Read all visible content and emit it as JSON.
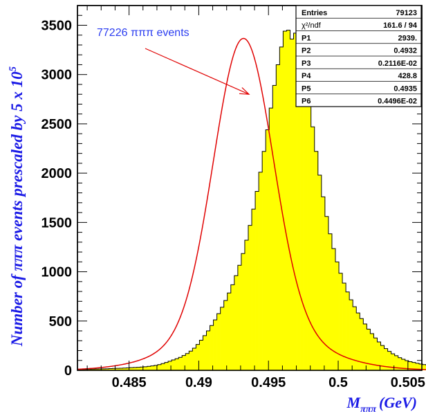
{
  "chart_data": {
    "type": "histogram",
    "x_axis": {
      "label_main": "M",
      "label_sub": "πππ",
      "label_unit": "(GeV)",
      "range": [
        0.4813,
        0.506
      ],
      "ticks": [
        0.485,
        0.49,
        0.495,
        0.5,
        0.505
      ],
      "tick_labels": [
        "0.485",
        "0.49",
        "0.495",
        "0.5",
        "0.505"
      ]
    },
    "y_axis": {
      "label": "Number of πππ events prescaled by 5 x 10",
      "label_exp": "5",
      "range": [
        0,
        3700
      ],
      "ticks": [
        0,
        500,
        1000,
        1500,
        2000,
        2500,
        3000,
        3500
      ],
      "tick_labels": [
        "0",
        "500",
        "1000",
        "1500",
        "2000",
        "2500",
        "3000",
        "3500"
      ]
    },
    "annotation": "77226 πππ events",
    "annotation_point": {
      "x": 0.4936,
      "y": 2800
    },
    "histogram": {
      "fill_color": "#ffff00",
      "line_color": "#000000",
      "bin_edges_start": 0.4813,
      "bin_width": 0.00025,
      "counts": [
        8,
        9,
        10,
        11,
        12,
        13,
        14,
        15,
        16,
        18,
        19,
        20,
        21,
        23,
        25,
        27,
        29,
        31,
        33,
        36,
        40,
        45,
        50,
        58,
        68,
        80,
        92,
        105,
        118,
        132,
        150,
        170,
        195,
        225,
        262,
        305,
        352,
        400,
        455,
        512,
        575,
        640,
        708,
        785,
        868,
        960,
        1065,
        1185,
        1320,
        1470,
        1635,
        1815,
        2010,
        2220,
        2440,
        2660,
        2890,
        3100,
        3280,
        3440,
        3450,
        3360,
        3420,
        3300,
        3150,
        2960,
        2720,
        2470,
        2220,
        1980,
        1760,
        1560,
        1385,
        1235,
        1100,
        985,
        885,
        795,
        715,
        645,
        582,
        525,
        470,
        418,
        372,
        328,
        288,
        252,
        220,
        192,
        168,
        148,
        128,
        112,
        98,
        88,
        80,
        72,
        64,
        58,
        52,
        46,
        42,
        38,
        33,
        30,
        27,
        25,
        22,
        20
      ]
    },
    "fit": {
      "color": "#e00000",
      "params": {
        "P1": 2939.0,
        "P2": 0.4932,
        "P3": 0.002116,
        "P4": 428.8,
        "P5": 0.4935,
        "P6": 0.004496
      }
    },
    "stats_box": [
      {
        "label": "Entries",
        "value": "79123"
      },
      {
        "label": "χ²/ndf",
        "value": "161.6    /   94"
      },
      {
        "label": "P1",
        "value": "2939."
      },
      {
        "label": "P2",
        "value": "0.4932"
      },
      {
        "label": "P3",
        "value": "0.2116E-02"
      },
      {
        "label": "P4",
        "value": "428.8"
      },
      {
        "label": "P5",
        "value": "0.4935"
      },
      {
        "label": "P6",
        "value": "0.4496E-02"
      }
    ]
  }
}
